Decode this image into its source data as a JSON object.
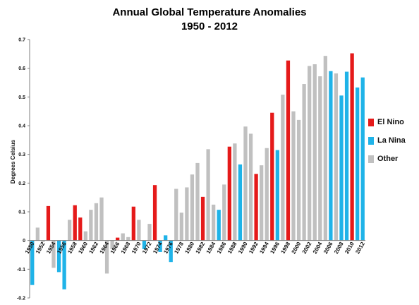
{
  "chart_data": {
    "type": "bar",
    "title": "Annual Global Temperature Anomalies",
    "subtitle": "1950 - 2012",
    "xlabel": "",
    "ylabel": "Degrees Celsius",
    "ylim": [
      -0.2,
      0.7
    ],
    "yticks": [
      -0.2,
      -0.1,
      0,
      0.1,
      0.2,
      0.3,
      0.4,
      0.5,
      0.6,
      0.7
    ],
    "grid": false,
    "legend_position": "right",
    "legend": [
      {
        "key": "elnino",
        "name": "El Nino",
        "color": "#e51a1a"
      },
      {
        "key": "lanina",
        "name": "La Nina",
        "color": "#1fb3e8"
      },
      {
        "key": "other",
        "name": "Other",
        "color": "#c0c0c0"
      }
    ],
    "tick_labels": [
      "1950",
      "1952",
      "1954",
      "1956",
      "1958",
      "1960",
      "1962",
      "1964",
      "1966",
      "1968",
      "1970",
      "1972",
      "1974",
      "1976",
      "1978",
      "1980",
      "1982",
      "1984",
      "1986",
      "1988",
      "1990",
      "1992",
      "1994",
      "1996",
      "1998",
      "2000",
      "2002",
      "2004",
      "2006",
      "2008",
      "2010",
      "2012"
    ],
    "years": [
      1950,
      1951,
      1952,
      1953,
      1954,
      1955,
      1956,
      1957,
      1958,
      1959,
      1960,
      1961,
      1962,
      1963,
      1964,
      1965,
      1966,
      1967,
      1968,
      1969,
      1970,
      1971,
      1972,
      1973,
      1974,
      1975,
      1976,
      1977,
      1978,
      1979,
      1980,
      1981,
      1982,
      1983,
      1984,
      1985,
      1986,
      1987,
      1988,
      1989,
      1990,
      1991,
      1992,
      1993,
      1994,
      1995,
      1996,
      1997,
      1998,
      1999,
      2000,
      2001,
      2002,
      2003,
      2004,
      2005,
      2006,
      2007,
      2008,
      2009,
      2010,
      2011,
      2012
    ],
    "values": [
      -0.155,
      0.045,
      -0.005,
      0.12,
      -0.095,
      -0.11,
      -0.17,
      0.072,
      0.123,
      0.08,
      0.032,
      0.107,
      0.13,
      0.15,
      -0.115,
      -0.03,
      0.01,
      0.025,
      0.012,
      0.118,
      0.072,
      -0.03,
      0.058,
      0.193,
      -0.04,
      0.018,
      -0.075,
      0.18,
      0.097,
      0.185,
      0.23,
      0.27,
      0.152,
      0.318,
      0.125,
      0.107,
      0.195,
      0.327,
      0.338,
      0.265,
      0.397,
      0.372,
      0.232,
      0.262,
      0.322,
      0.445,
      0.315,
      0.508,
      0.627,
      0.45,
      0.42,
      0.545,
      0.608,
      0.614,
      0.572,
      0.643,
      0.59,
      0.582,
      0.505,
      0.588,
      0.652,
      0.533,
      0.568
    ],
    "categories": [
      "lanina",
      "other",
      "other",
      "elnino",
      "other",
      "lanina",
      "lanina",
      "other",
      "elnino",
      "elnino",
      "other",
      "other",
      "other",
      "other",
      "other",
      "other",
      "elnino",
      "other",
      "other",
      "elnino",
      "other",
      "lanina",
      "other",
      "elnino",
      "lanina",
      "lanina",
      "lanina",
      "other",
      "other",
      "other",
      "other",
      "other",
      "elnino",
      "other",
      "other",
      "lanina",
      "other",
      "elnino",
      "other",
      "lanina",
      "other",
      "other",
      "elnino",
      "other",
      "other",
      "elnino",
      "lanina",
      "other",
      "elnino",
      "other",
      "other",
      "other",
      "other",
      "other",
      "other",
      "other",
      "lanina",
      "other",
      "lanina",
      "lanina",
      "elnino",
      "lanina",
      "lanina"
    ]
  }
}
